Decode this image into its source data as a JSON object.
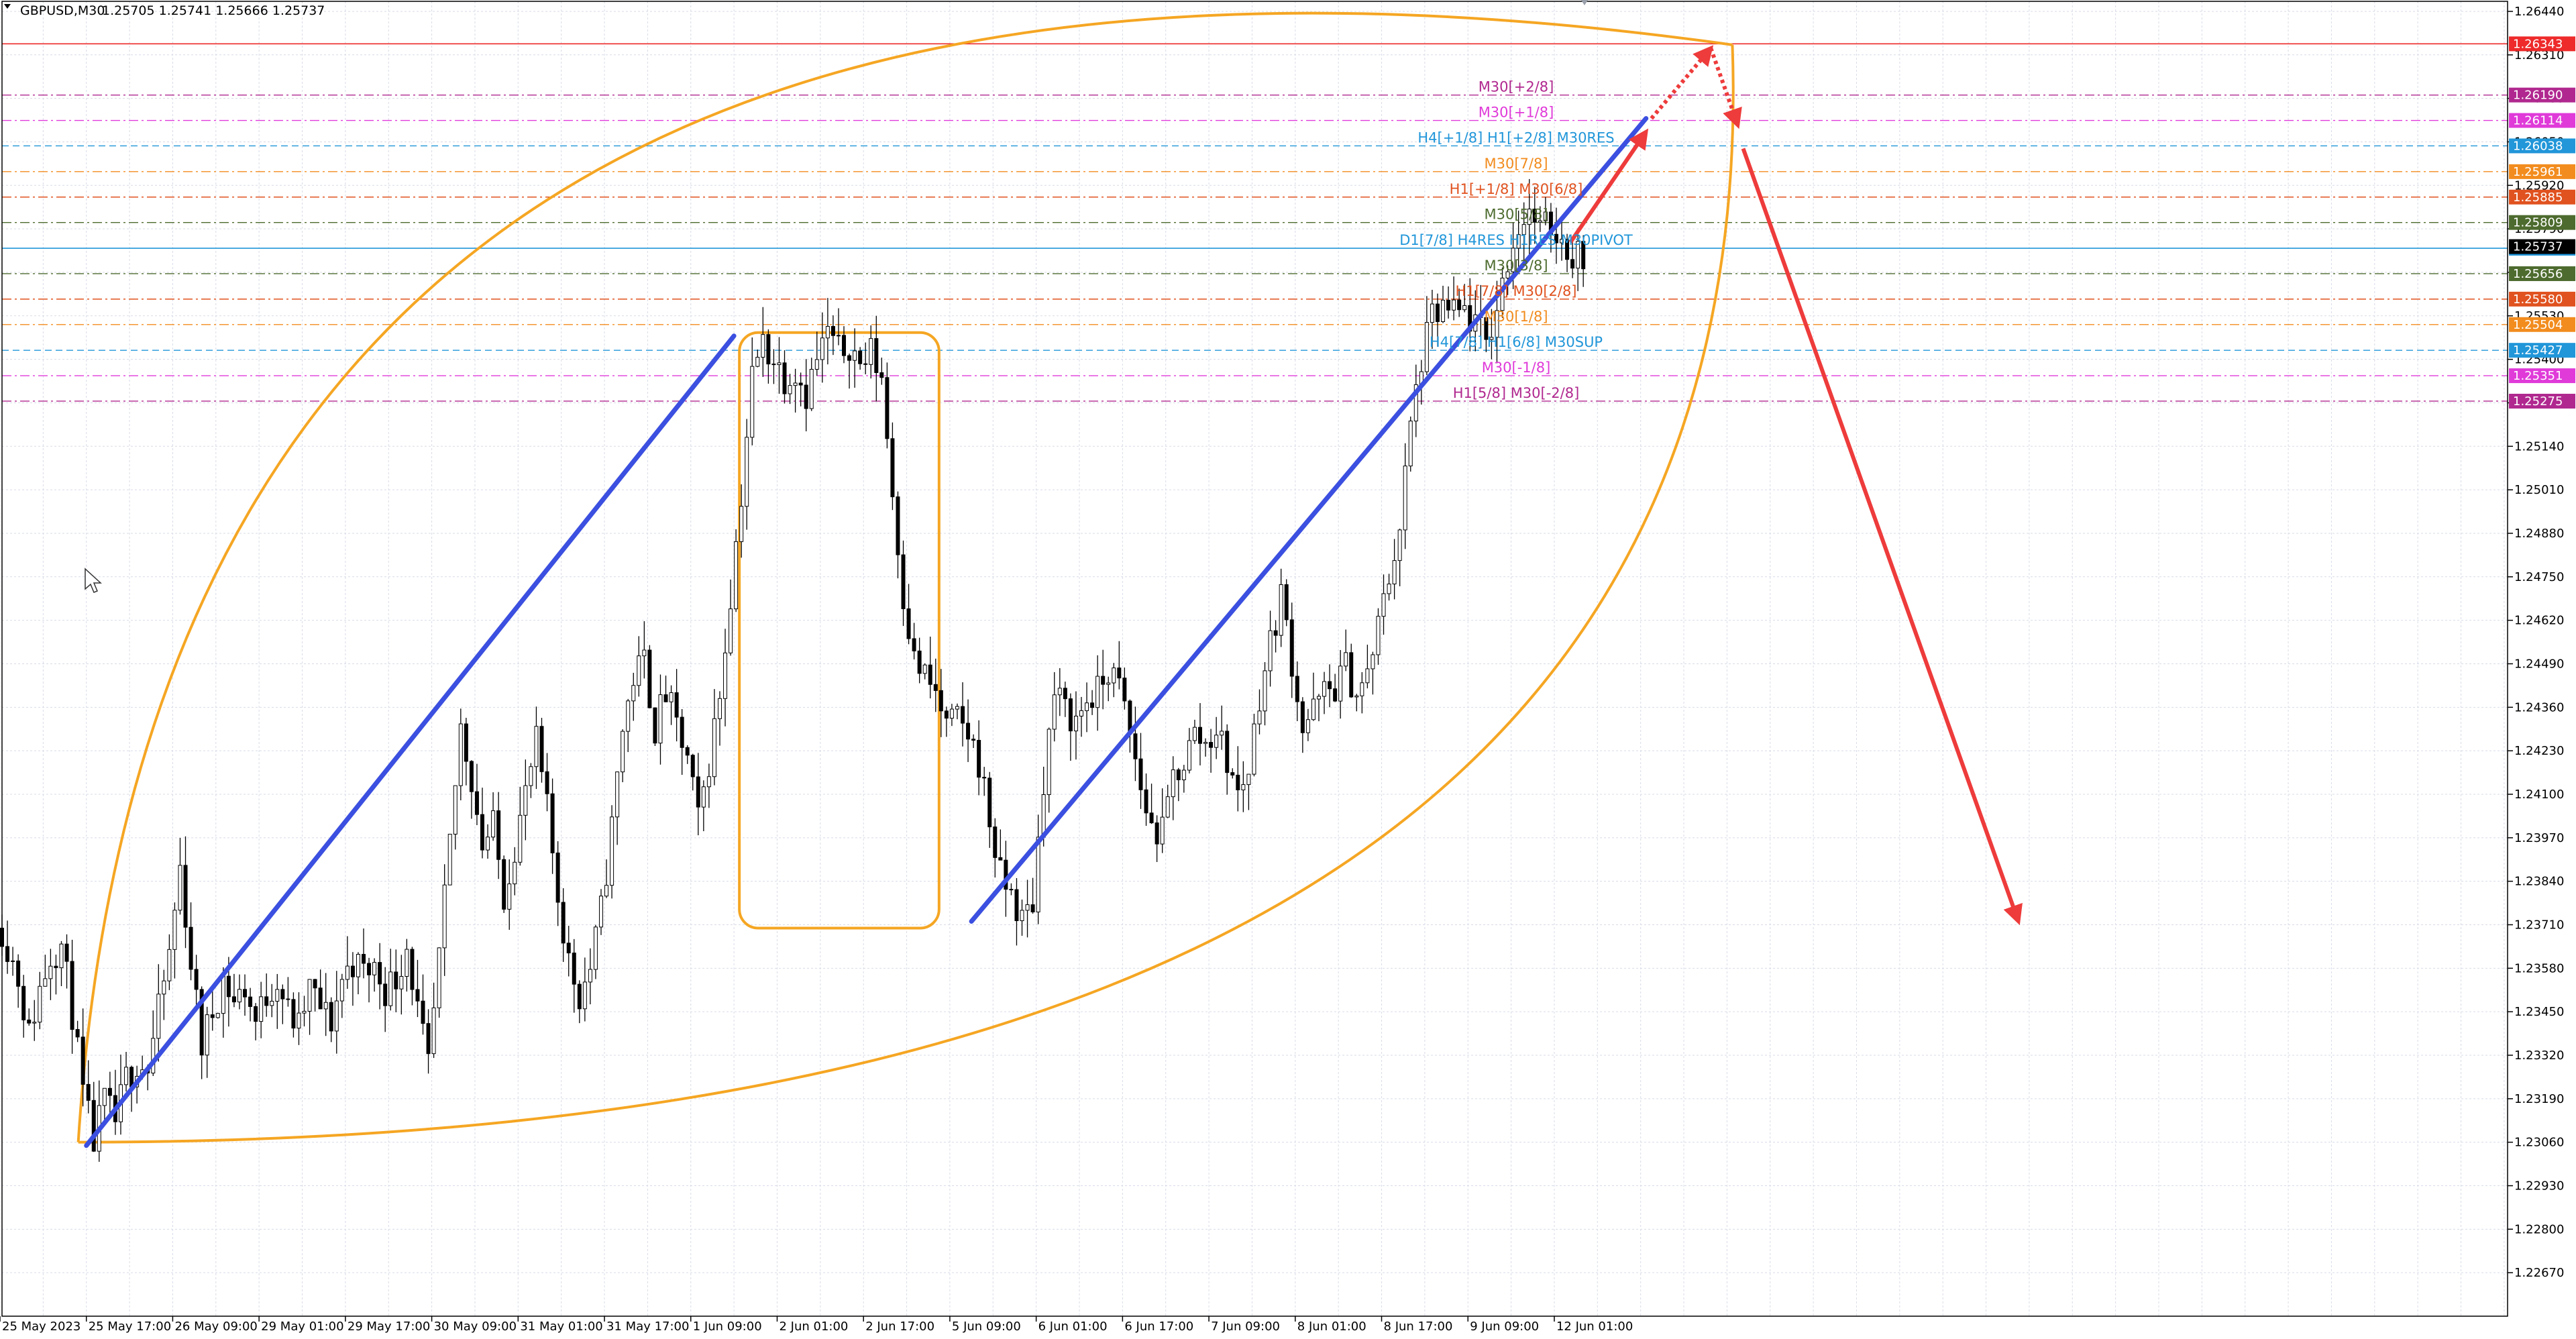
{
  "window": {
    "symbol_timeframe": "GBPUSD,M30",
    "ohlc": "1.25705 1.25741 1.25666 1.25737"
  },
  "colors": {
    "candle": "#000000",
    "trend_line": "#3b4fe0",
    "cycle_ellipse": "#f5a623",
    "forecast_arrow": "#ee3b3b",
    "grid": "#d7dbe6"
  },
  "chart_data": {
    "type": "candlestick",
    "symbol": "GBPUSD",
    "timeframe": "M30",
    "ylim": [
      1.2254,
      1.2647
    ],
    "y_ticks": [
      "1.26440",
      "1.26310",
      "1.26180",
      "1.26050",
      "1.25920",
      "1.25790",
      "1.25660",
      "1.25530",
      "1.25400",
      "1.25270",
      "1.25140",
      "1.25010",
      "1.24880",
      "1.24750",
      "1.24620",
      "1.24490",
      "1.24360",
      "1.24230",
      "1.24100",
      "1.23970",
      "1.23840",
      "1.23710",
      "1.23580",
      "1.23450",
      "1.23320",
      "1.23190",
      "1.23060",
      "1.22930",
      "1.22800",
      "1.22670"
    ],
    "x_ticks": [
      {
        "label": "25 May 2023",
        "bar": 0
      },
      {
        "label": "25 May 17:00",
        "bar": 16
      },
      {
        "label": "26 May 09:00",
        "bar": 32
      },
      {
        "label": "29 May 01:00",
        "bar": 48
      },
      {
        "label": "29 May 17:00",
        "bar": 64
      },
      {
        "label": "30 May 09:00",
        "bar": 80
      },
      {
        "label": "31 May 01:00",
        "bar": 96
      },
      {
        "label": "31 May 17:00",
        "bar": 112
      },
      {
        "label": "1 Jun 09:00",
        "bar": 128
      },
      {
        "label": "2 Jun 01:00",
        "bar": 144
      },
      {
        "label": "2 Jun 17:00",
        "bar": 160
      },
      {
        "label": "5 Jun 09:00",
        "bar": 176
      },
      {
        "label": "6 Jun 01:00",
        "bar": 192
      },
      {
        "label": "6 Jun 17:00",
        "bar": 208
      },
      {
        "label": "7 Jun 09:00",
        "bar": 224
      },
      {
        "label": "8 Jun 01:00",
        "bar": 240
      },
      {
        "label": "8 Jun 17:00",
        "bar": 256
      },
      {
        "label": "9 Jun 09:00",
        "bar": 272
      },
      {
        "label": "12 Jun 01:00",
        "bar": 288
      }
    ],
    "price_path": [
      [
        0,
        1.237
      ],
      [
        3,
        1.2355
      ],
      [
        5,
        1.2338
      ],
      [
        7,
        1.2352
      ],
      [
        9,
        1.2362
      ],
      [
        11,
        1.2365
      ],
      [
        13,
        1.2345
      ],
      [
        15,
        1.232
      ],
      [
        17,
        1.2306
      ],
      [
        19,
        1.2318
      ],
      [
        21,
        1.2312
      ],
      [
        23,
        1.2325
      ],
      [
        25,
        1.233
      ],
      [
        27,
        1.2328
      ],
      [
        29,
        1.2345
      ],
      [
        31,
        1.2362
      ],
      [
        33,
        1.2388
      ],
      [
        35,
        1.236
      ],
      [
        37,
        1.2335
      ],
      [
        39,
        1.2345
      ],
      [
        41,
        1.2355
      ],
      [
        43,
        1.2348
      ],
      [
        45,
        1.2352
      ],
      [
        47,
        1.2342
      ],
      [
        49,
        1.235
      ],
      [
        51,
        1.2355
      ],
      [
        53,
        1.2345
      ],
      [
        55,
        1.234
      ],
      [
        57,
        1.2352
      ],
      [
        59,
        1.2346
      ],
      [
        61,
        1.2342
      ],
      [
        63,
        1.2355
      ],
      [
        65,
        1.236
      ],
      [
        67,
        1.2357
      ],
      [
        69,
        1.2358
      ],
      [
        71,
        1.2352
      ],
      [
        73,
        1.2355
      ],
      [
        75,
        1.2365
      ],
      [
        77,
        1.2345
      ],
      [
        79,
        1.2328
      ],
      [
        81,
        1.236
      ],
      [
        83,
        1.2395
      ],
      [
        85,
        1.243
      ],
      [
        87,
        1.2415
      ],
      [
        89,
        1.2395
      ],
      [
        91,
        1.24
      ],
      [
        93,
        1.238
      ],
      [
        95,
        1.2395
      ],
      [
        97,
        1.241
      ],
      [
        99,
        1.2425
      ],
      [
        101,
        1.2405
      ],
      [
        103,
        1.238
      ],
      [
        105,
        1.236
      ],
      [
        107,
        1.235
      ],
      [
        109,
        1.2358
      ],
      [
        111,
        1.2375
      ],
      [
        113,
        1.24
      ],
      [
        115,
        1.243
      ],
      [
        117,
        1.2445
      ],
      [
        119,
        1.245
      ],
      [
        121,
        1.243
      ],
      [
        123,
        1.244
      ],
      [
        125,
        1.243
      ],
      [
        127,
        1.242
      ],
      [
        129,
        1.2402
      ],
      [
        131,
        1.242
      ],
      [
        133,
        1.244
      ],
      [
        135,
        1.247
      ],
      [
        137,
        1.25
      ],
      [
        139,
        1.2535
      ],
      [
        141,
        1.2545
      ],
      [
        143,
        1.254
      ],
      [
        145,
        1.2535
      ],
      [
        147,
        1.2537
      ],
      [
        149,
        1.253
      ],
      [
        151,
        1.254
      ],
      [
        153,
        1.2548
      ],
      [
        155,
        1.2542
      ],
      [
        157,
        1.2545
      ],
      [
        159,
        1.2538
      ],
      [
        161,
        1.2542
      ],
      [
        163,
        1.2535
      ],
      [
        165,
        1.25
      ],
      [
        167,
        1.247
      ],
      [
        169,
        1.245
      ],
      [
        171,
        1.2445
      ],
      [
        173,
        1.244
      ],
      [
        175,
        1.243
      ],
      [
        177,
        1.2432
      ],
      [
        179,
        1.2428
      ],
      [
        181,
        1.242
      ],
      [
        183,
        1.2402
      ],
      [
        185,
        1.2385
      ],
      [
        187,
        1.238
      ],
      [
        189,
        1.2372
      ],
      [
        191,
        1.2378
      ],
      [
        193,
        1.2415
      ],
      [
        195,
        1.244
      ],
      [
        197,
        1.2435
      ],
      [
        199,
        1.2432
      ],
      [
        201,
        1.2438
      ],
      [
        203,
        1.244
      ],
      [
        205,
        1.2447
      ],
      [
        207,
        1.2442
      ],
      [
        209,
        1.2428
      ],
      [
        211,
        1.2412
      ],
      [
        213,
        1.24
      ],
      [
        215,
        1.2398
      ],
      [
        217,
        1.2415
      ],
      [
        219,
        1.242
      ],
      [
        221,
        1.2428
      ],
      [
        223,
        1.2425
      ],
      [
        225,
        1.243
      ],
      [
        227,
        1.242
      ],
      [
        229,
        1.241
      ],
      [
        231,
        1.2418
      ],
      [
        233,
        1.244
      ],
      [
        235,
        1.2455
      ],
      [
        237,
        1.247
      ],
      [
        239,
        1.245
      ],
      [
        241,
        1.243
      ],
      [
        243,
        1.2435
      ],
      [
        245,
        1.244
      ],
      [
        247,
        1.2442
      ],
      [
        249,
        1.2448
      ],
      [
        251,
        1.244
      ],
      [
        253,
        1.2445
      ],
      [
        255,
        1.246
      ],
      [
        257,
        1.2475
      ],
      [
        259,
        1.249
      ],
      [
        261,
        1.252
      ],
      [
        263,
        1.254
      ],
      [
        265,
        1.2552
      ],
      [
        267,
        1.2555
      ],
      [
        269,
        1.2553
      ],
      [
        271,
        1.2554
      ],
      [
        273,
        1.255
      ],
      [
        275,
        1.2545
      ],
      [
        277,
        1.2555
      ],
      [
        279,
        1.257
      ],
      [
        281,
        1.258
      ],
      [
        283,
        1.2585
      ],
      [
        285,
        1.2578
      ],
      [
        287,
        1.258
      ],
      [
        289,
        1.2576
      ],
      [
        291,
        1.2571
      ],
      [
        293,
        1.2572
      ]
    ],
    "levels": [
      {
        "label": "",
        "value": "1.26343",
        "price": 1.26343,
        "color": "#ee2a2a",
        "style": "solid"
      },
      {
        "label": "M30[+2/8]",
        "value": "1.26190",
        "price": 1.2619,
        "color": "#b0288f",
        "style": "dashdot"
      },
      {
        "label": "M30[+1/8]",
        "value": "1.26114",
        "price": 1.26114,
        "color": "#e03ad9",
        "style": "dashdot"
      },
      {
        "label": "H4[+1/8] H1[+2/8] M30RES",
        "value": "1.26038",
        "price": 1.26038,
        "color": "#2196d9",
        "style": "dash"
      },
      {
        "label": "M30[7/8]",
        "value": "1.25961",
        "price": 1.25961,
        "color": "#f28c1e",
        "style": "dashdot"
      },
      {
        "label": "H1[+1/8] M30[6/8]",
        "value": "1.25885",
        "price": 1.25885,
        "color": "#e0521f",
        "style": "dashdot"
      },
      {
        "label": "M30[5/8]",
        "value": "1.25809",
        "price": 1.25809,
        "color": "#4d6b2e",
        "style": "dashdot"
      },
      {
        "label": "D1[7/8] H4RES H1RES M30PIVOT",
        "value": "1.25732",
        "price": 1.25732,
        "color": "#2196d9",
        "style": "solid"
      },
      {
        "label": "M30[3/8]",
        "value": "1.25656",
        "price": 1.25656,
        "color": "#4d6b2e",
        "style": "dashdot"
      },
      {
        "label": "H1[7/8] M30[2/8]",
        "value": "1.25580",
        "price": 1.2558,
        "color": "#e0521f",
        "style": "dashdot"
      },
      {
        "label": "M30[1/8]",
        "value": "1.25504",
        "price": 1.25504,
        "color": "#f28c1e",
        "style": "dashdot"
      },
      {
        "label": "H4[7/8] H1[6/8] M30SUP",
        "value": "1.25427",
        "price": 1.25427,
        "color": "#2196d9",
        "style": "dash"
      },
      {
        "label": "M30[-1/8]",
        "value": "1.25351",
        "price": 1.25351,
        "color": "#e03ad9",
        "style": "dashdot"
      },
      {
        "label": "H1[5/8] M30[-2/8]",
        "value": "1.25275",
        "price": 1.25275,
        "color": "#b0288f",
        "style": "dashdot"
      }
    ],
    "current_price": {
      "value": "1.25737",
      "price": 1.25737,
      "color": "#000000"
    },
    "grid": true,
    "annotations": {
      "trend_lines": [
        {
          "from": {
            "bar": 16,
            "price": 1.2305
          },
          "to": {
            "bar": 136,
            "price": 1.2547
          }
        },
        {
          "from": {
            "bar": 180,
            "price": 1.2372
          },
          "to": {
            "bar": 305,
            "price": 1.2612
          }
        }
      ],
      "rect": {
        "from": {
          "bar": 137,
          "price": 1.2548
        },
        "to": {
          "bar": 174,
          "price": 1.237
        }
      },
      "ellipse_center": {
        "bar": 162,
        "price": 1.2468
      },
      "arrows": [
        {
          "from": {
            "bar": 291,
            "price": 1.2575
          },
          "to": {
            "bar": 305,
            "price": 1.2608
          },
          "dotted": false
        },
        {
          "from": {
            "bar": 306,
            "price": 1.2612
          },
          "to": {
            "bar": 317,
            "price": 1.2633
          },
          "dotted": true
        },
        {
          "from": {
            "bar": 317,
            "price": 1.2633
          },
          "to": {
            "bar": 322,
            "price": 1.261
          },
          "dotted": true
        },
        {
          "from": {
            "bar": 323,
            "price": 1.2603
          },
          "to": {
            "bar": 374,
            "price": 1.2372
          },
          "dotted": false
        }
      ]
    }
  }
}
